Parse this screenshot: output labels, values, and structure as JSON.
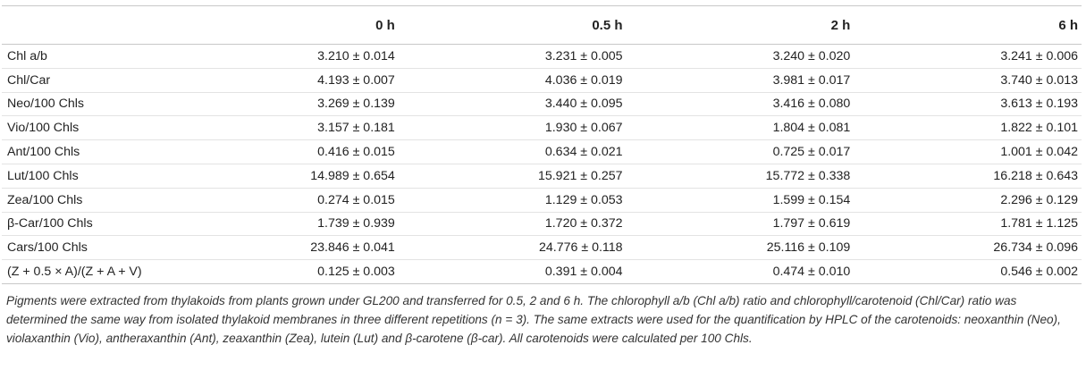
{
  "table": {
    "columns": [
      "",
      "0 h",
      "0.5 h",
      "2 h",
      "6 h"
    ],
    "rows": [
      {
        "label": "Chl a/b",
        "values": [
          "3.210 ± 0.014",
          "3.231 ± 0.005",
          "3.240 ± 0.020",
          "3.241 ± 0.006"
        ]
      },
      {
        "label": "Chl/Car",
        "values": [
          "4.193 ± 0.007",
          "4.036 ± 0.019",
          "3.981 ± 0.017",
          "3.740 ± 0.013"
        ]
      },
      {
        "label": "Neo/100 Chls",
        "values": [
          "3.269 ± 0.139",
          "3.440 ± 0.095",
          "3.416 ± 0.080",
          "3.613 ± 0.193"
        ]
      },
      {
        "label": "Vio/100 Chls",
        "values": [
          "3.157 ± 0.181",
          "1.930 ± 0.067",
          "1.804 ± 0.081",
          "1.822 ± 0.101"
        ]
      },
      {
        "label": "Ant/100 Chls",
        "values": [
          "0.416 ± 0.015",
          "0.634 ± 0.021",
          "0.725 ± 0.017",
          "1.001 ± 0.042"
        ]
      },
      {
        "label": "Lut/100 Chls",
        "values": [
          "14.989 ± 0.654",
          "15.921 ± 0.257",
          "15.772 ± 0.338",
          "16.218 ± 0.643"
        ]
      },
      {
        "label": "Zea/100 Chls",
        "values": [
          "0.274 ± 0.015",
          "1.129 ± 0.053",
          "1.599 ± 0.154",
          "2.296 ± 0.129"
        ]
      },
      {
        "label": "β-Car/100 Chls",
        "values": [
          "1.739 ± 0.939",
          "1.720 ± 0.372",
          "1.797 ± 0.619",
          "1.781 ± 1.125"
        ]
      },
      {
        "label": "Cars/100 Chls",
        "values": [
          "23.846 ± 0.041",
          "24.776 ± 0.118",
          "25.116 ± 0.109",
          "26.734 ± 0.096"
        ]
      },
      {
        "label": "(Z + 0.5 × A)/(Z + A + V)",
        "values": [
          "0.125 ± 0.003",
          "0.391 ± 0.004",
          "0.474 ± 0.010",
          "0.546 ± 0.002"
        ]
      }
    ]
  },
  "caption": "Pigments were extracted from thylakoids from plants grown under GL200 and transferred for 0.5, 2 and 6 h. The chlorophyll a/b (Chl a/b) ratio and chlorophyll/carotenoid (Chl/Car) ratio was determined the same way from isolated thylakoid membranes in three different repetitions (n = 3). The same extracts were used for the quantification by HPLC of the carotenoids: neoxanthin (Neo), violaxanthin (Vio), antheraxanthin (Ant), zeaxanthin (Zea), lutein (Lut) and β-carotene (β-car). All carotenoids were calculated per 100 Chls."
}
